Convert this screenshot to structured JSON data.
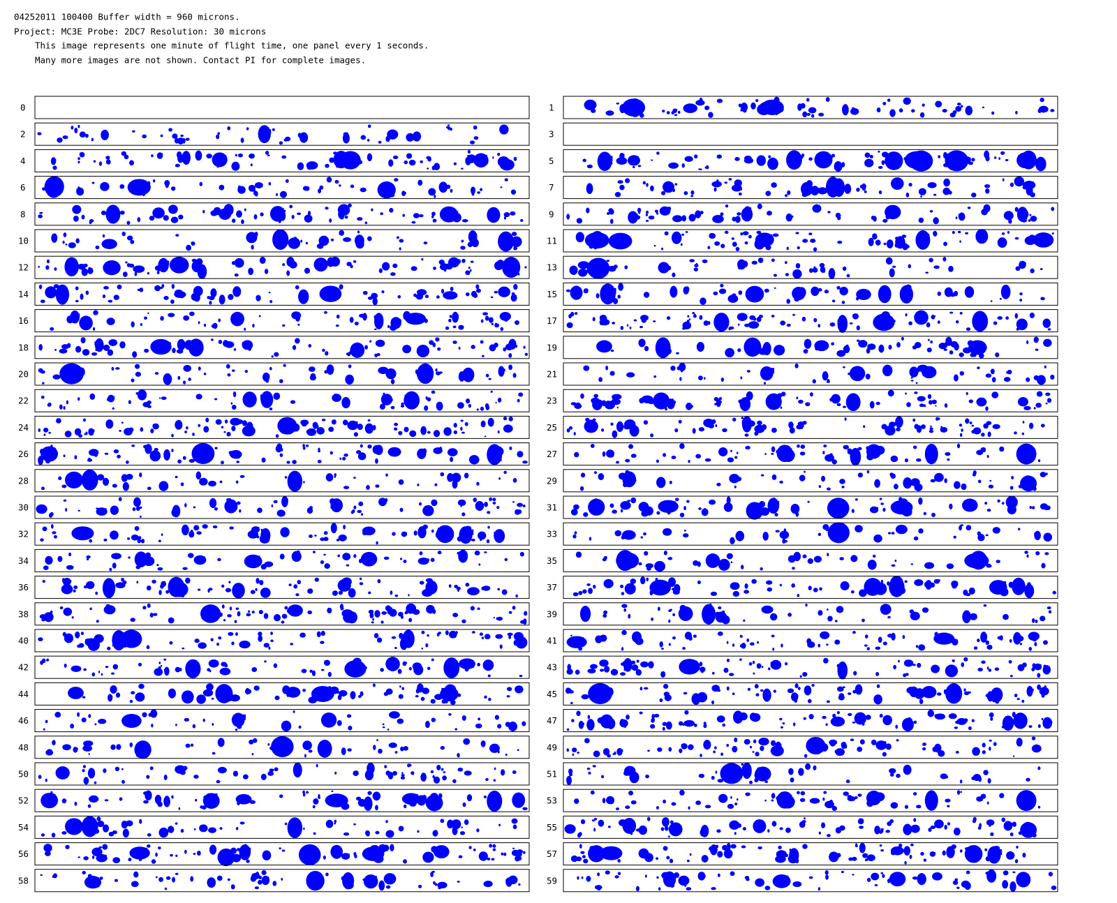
{
  "header": {
    "lines": [
      "04252011 100400  Buffer width = 960 microns.",
      "Project: MC3E   Probe: 2DC7    Resolution: 30 microns",
      "This image represents one minute of flight time, one panel every 1 seconds.",
      "Many more images are not shown.  Contact PI for complete images."
    ]
  },
  "panels": [
    "0",
    "1",
    "2",
    "3",
    "4",
    "5",
    "6",
    "7",
    "8",
    "9",
    "10",
    "11",
    "12",
    "13",
    "14",
    "15",
    "16",
    "17",
    "18",
    "19",
    "20",
    "21",
    "22",
    "23",
    "24",
    "25",
    "26",
    "27",
    "28",
    "29",
    "30",
    "31",
    "32",
    "33",
    "34",
    "35",
    "36",
    "37",
    "38",
    "39",
    "40",
    "41",
    "42",
    "43",
    "44",
    "45",
    "46",
    "47",
    "48",
    "49",
    "50",
    "51",
    "52",
    "53",
    "54",
    "55",
    "56",
    "57",
    "58",
    "59"
  ]
}
